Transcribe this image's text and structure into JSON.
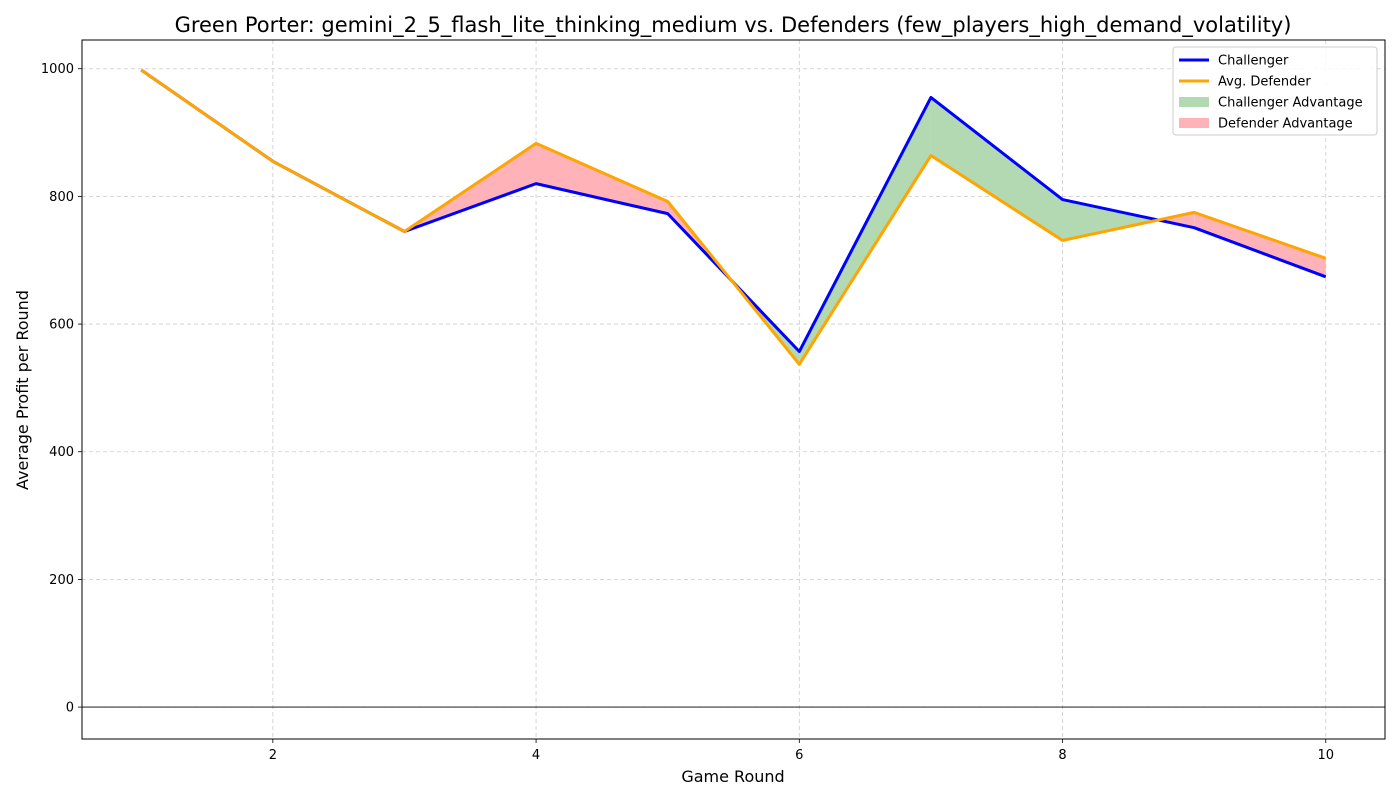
{
  "chart_data": {
    "type": "line",
    "title": "Green Porter: gemini_2_5_flash_lite_thinking_medium vs. Defenders (few_players_high_demand_volatility)",
    "xlabel": "Game Round",
    "ylabel": "Average Profit per Round",
    "x": [
      1,
      2,
      3,
      4,
      5,
      6,
      7,
      8,
      9,
      10
    ],
    "xlim": [
      0.55,
      10.45
    ],
    "ylim": [
      -50,
      1045
    ],
    "xticks": [
      2,
      4,
      6,
      8,
      10
    ],
    "yticks": [
      0,
      200,
      400,
      600,
      800,
      1000
    ],
    "grid": true,
    "legend_position": "top-right",
    "zero_line": true,
    "series": [
      {
        "name": "Challenger",
        "color": "#0000ff",
        "values": [
          998,
          855,
          745,
          820,
          773,
          557,
          955,
          795,
          751,
          674
        ]
      },
      {
        "name": "Avg. Defender",
        "color": "#ffa500",
        "values": [
          998,
          855,
          745,
          883,
          792,
          537,
          864,
          731,
          775,
          703
        ]
      }
    ],
    "fills": [
      {
        "name": "Challenger Advantage",
        "color": "#b2d9b2"
      },
      {
        "name": "Defender Advantage",
        "color": "#ffb3b8"
      }
    ]
  }
}
